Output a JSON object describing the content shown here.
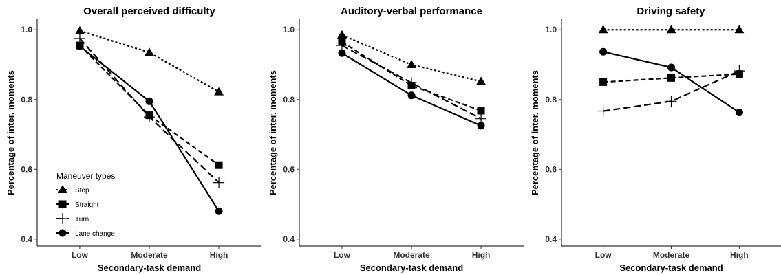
{
  "legend": {
    "title": "Maneuver types",
    "placement": "inside-bottom-left of first panel",
    "entries": [
      "Stop",
      "Straight",
      "Turn",
      "Lane change"
    ]
  },
  "chart_data": [
    {
      "type": "line",
      "title": "Overall perceived difficulty",
      "xlabel": "Secondary-task demand",
      "ylabel": "Percentage of inter. moments",
      "categories": [
        "Low",
        "Moderate",
        "High"
      ],
      "ylim": [
        0.38,
        1.03
      ],
      "yticks": [
        "0.4",
        "0.6",
        "0.8",
        "1.0"
      ],
      "grid": false,
      "series": [
        {
          "name": "Stop",
          "marker": "triangle",
          "dash": "dotted",
          "values": [
            0.997,
            0.935,
            0.822
          ]
        },
        {
          "name": "Straight",
          "marker": "square",
          "dash": "dashed",
          "values": [
            0.955,
            0.755,
            0.612
          ]
        },
        {
          "name": "Turn",
          "marker": "plus",
          "dash": "longdash",
          "values": [
            0.975,
            0.75,
            0.562
          ]
        },
        {
          "name": "Lane change",
          "marker": "circle",
          "dash": "solid",
          "values": [
            0.953,
            0.795,
            0.48
          ]
        }
      ]
    },
    {
      "type": "line",
      "title": "Auditory-verbal performance",
      "xlabel": "Secondary-task demand",
      "ylabel": "Percentage of inter. moments",
      "categories": [
        "Low",
        "Moderate",
        "High"
      ],
      "ylim": [
        0.38,
        1.03
      ],
      "yticks": [
        "0.4",
        "0.6",
        "0.8",
        "1.0"
      ],
      "grid": false,
      "series": [
        {
          "name": "Stop",
          "marker": "triangle",
          "dash": "dotted",
          "values": [
            0.985,
            0.9,
            0.852
          ]
        },
        {
          "name": "Straight",
          "marker": "square",
          "dash": "dashed",
          "values": [
            0.965,
            0.84,
            0.768
          ]
        },
        {
          "name": "Turn",
          "marker": "plus",
          "dash": "longdash",
          "values": [
            0.955,
            0.848,
            0.745
          ]
        },
        {
          "name": "Lane change",
          "marker": "circle",
          "dash": "solid",
          "values": [
            0.933,
            0.812,
            0.725
          ]
        }
      ]
    },
    {
      "type": "line",
      "title": "Driving safety",
      "xlabel": "Secondary-task demand",
      "ylabel": "Percentage of inter. moments",
      "categories": [
        "Low",
        "Moderate",
        "High"
      ],
      "ylim": [
        0.38,
        1.03
      ],
      "yticks": [
        "0.4",
        "0.6",
        "0.8",
        "1.0"
      ],
      "grid": false,
      "series": [
        {
          "name": "Stop",
          "marker": "triangle",
          "dash": "dotted",
          "values": [
            1.0,
            1.0,
            1.0
          ]
        },
        {
          "name": "Straight",
          "marker": "square",
          "dash": "dashed",
          "values": [
            0.85,
            0.862,
            0.873
          ]
        },
        {
          "name": "Turn",
          "marker": "plus",
          "dash": "longdash",
          "values": [
            0.767,
            0.795,
            0.882
          ]
        },
        {
          "name": "Lane change",
          "marker": "circle",
          "dash": "solid",
          "values": [
            0.937,
            0.892,
            0.763
          ]
        }
      ]
    }
  ]
}
